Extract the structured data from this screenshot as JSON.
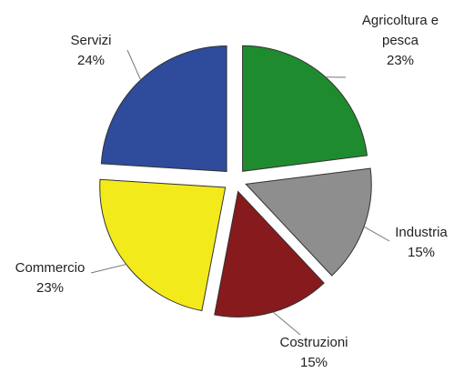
{
  "chart_data": {
    "type": "pie",
    "categories": [
      "Agricoltura e pesca",
      "Industria",
      "Costruzioni",
      "Commercio",
      "Servizi"
    ],
    "values": [
      23,
      15,
      15,
      23,
      24
    ],
    "value_labels": [
      "23%",
      "15%",
      "15%",
      "23%",
      "24%"
    ],
    "colors": [
      "#1f8b2f",
      "#8e8e8e",
      "#861a1c",
      "#f3ea1b",
      "#2f4b9b"
    ]
  }
}
